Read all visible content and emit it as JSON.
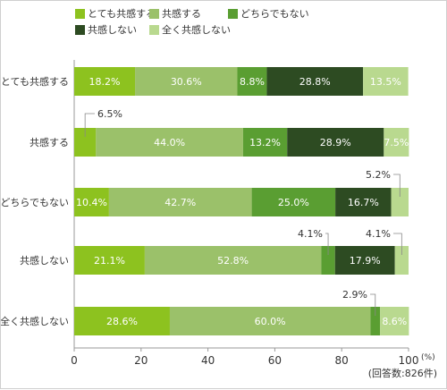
{
  "chart_data": {
    "type": "bar",
    "orientation": "horizontal",
    "stacked": true,
    "categories": [
      "とても共感する",
      "共感する",
      "どちらでもない",
      "共感しない",
      "全く共感しない"
    ],
    "series": [
      {
        "name": "とても共感する",
        "color": "#8dc21f",
        "values": [
          18.2,
          6.5,
          10.4,
          21.1,
          28.6
        ]
      },
      {
        "name": "共感する",
        "color": "#9bc16a",
        "values": [
          30.6,
          44.0,
          42.7,
          52.8,
          60.0
        ]
      },
      {
        "name": "どちらでもない",
        "color": "#5a9e32",
        "values": [
          8.8,
          13.2,
          25.0,
          4.1,
          2.9
        ]
      },
      {
        "name": "共感しない",
        "color": "#2d4b22",
        "values": [
          28.8,
          28.9,
          16.7,
          17.9,
          0
        ]
      },
      {
        "name": "全く共感しない",
        "color": "#b9d98f",
        "values": [
          13.5,
          7.5,
          5.2,
          4.1,
          8.6
        ]
      }
    ],
    "labels": [
      [
        "18.2%",
        "30.6%",
        "8.8%",
        "28.8%",
        "13.5%"
      ],
      [
        "6.5%",
        "44.0%",
        "13.2%",
        "28.9%",
        "7.5%"
      ],
      [
        "10.4%",
        "42.7%",
        "25.0%",
        "16.7%",
        "5.2%"
      ],
      [
        "21.1%",
        "52.8%",
        "4.1%",
        "17.9%",
        "4.1%"
      ],
      [
        "28.6%",
        "60.0%",
        "2.9%",
        "",
        "8.6%"
      ]
    ],
    "xticks": [
      "0",
      "20",
      "40",
      "60",
      "80",
      "100"
    ],
    "xlim": [
      0,
      100
    ],
    "x_unit": "(%)",
    "note": "(回答数:826件)",
    "legend_position": "top"
  }
}
